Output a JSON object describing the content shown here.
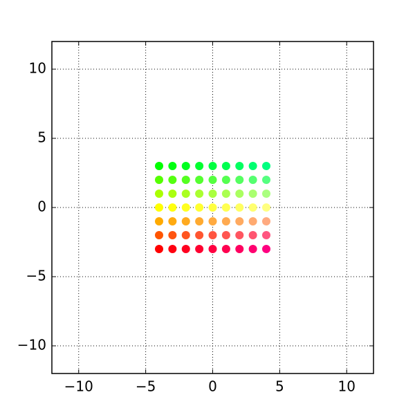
{
  "chart_data": {
    "type": "scatter",
    "x": [
      -4,
      -3,
      -2,
      -1,
      0,
      1,
      2,
      3,
      4,
      -4,
      -3,
      -2,
      -1,
      0,
      1,
      2,
      3,
      4,
      -4,
      -3,
      -2,
      -1,
      0,
      1,
      2,
      3,
      4,
      -4,
      -3,
      -2,
      -1,
      0,
      1,
      2,
      3,
      4,
      -4,
      -3,
      -2,
      -1,
      0,
      1,
      2,
      3,
      4,
      -4,
      -3,
      -2,
      -1,
      0,
      1,
      2,
      3,
      4,
      -4,
      -3,
      -2,
      -1,
      0,
      1,
      2,
      3,
      4
    ],
    "values": [
      -3,
      -3,
      -3,
      -3,
      -3,
      -3,
      -3,
      -3,
      -3,
      -2,
      -2,
      -2,
      -2,
      -2,
      -2,
      -2,
      -2,
      -2,
      -1,
      -1,
      -1,
      -1,
      -1,
      -1,
      -1,
      -1,
      -1,
      0,
      0,
      0,
      0,
      0,
      0,
      0,
      0,
      0,
      1,
      1,
      1,
      1,
      1,
      1,
      1,
      1,
      1,
      2,
      2,
      2,
      2,
      2,
      2,
      2,
      2,
      2,
      3,
      3,
      3,
      3,
      3,
      3,
      3,
      3,
      3
    ],
    "colors": [
      "#ff0000",
      "#ff0010",
      "#ff0020",
      "#ff0030",
      "#ff0040",
      "#ff0050",
      "#ff0060",
      "#ff0070",
      "#ff0080",
      "#ff5500",
      "#ff5510",
      "#ff5520",
      "#ff5530",
      "#ff5540",
      "#ff5550",
      "#ff5560",
      "#ff5570",
      "#ff5580",
      "#ffaa00",
      "#ffaa10",
      "#ffaa20",
      "#ffaa30",
      "#ffaa40",
      "#ffaa50",
      "#ffaa60",
      "#ffaa70",
      "#ffaa80",
      "#ffff00",
      "#ffff10",
      "#ffff20",
      "#ffff30",
      "#ffff40",
      "#ffff50",
      "#ffff60",
      "#ffff70",
      "#ffff80",
      "#aaff00",
      "#aaff10",
      "#aaff20",
      "#aaff30",
      "#aaff40",
      "#aaff50",
      "#aaff60",
      "#aaff70",
      "#aaff80",
      "#55ff00",
      "#55ff10",
      "#55ff20",
      "#55ff30",
      "#55ff40",
      "#55ff50",
      "#55ff60",
      "#55ff70",
      "#55ff80",
      "#00ff00",
      "#00ff10",
      "#00ff20",
      "#00ff30",
      "#00ff40",
      "#00ff50",
      "#00ff60",
      "#00ff70",
      "#00ff80"
    ],
    "xlim": [
      -12,
      12
    ],
    "ylim": [
      -12,
      12
    ],
    "xticks": [
      {
        "value": -10,
        "label": "−10"
      },
      {
        "value": -5,
        "label": "−5"
      },
      0,
      5,
      10
    ],
    "yticks": [
      {
        "value": -10,
        "label": "−10"
      },
      {
        "value": -5,
        "label": "−5"
      },
      0,
      5,
      10
    ],
    "grid": true
  }
}
